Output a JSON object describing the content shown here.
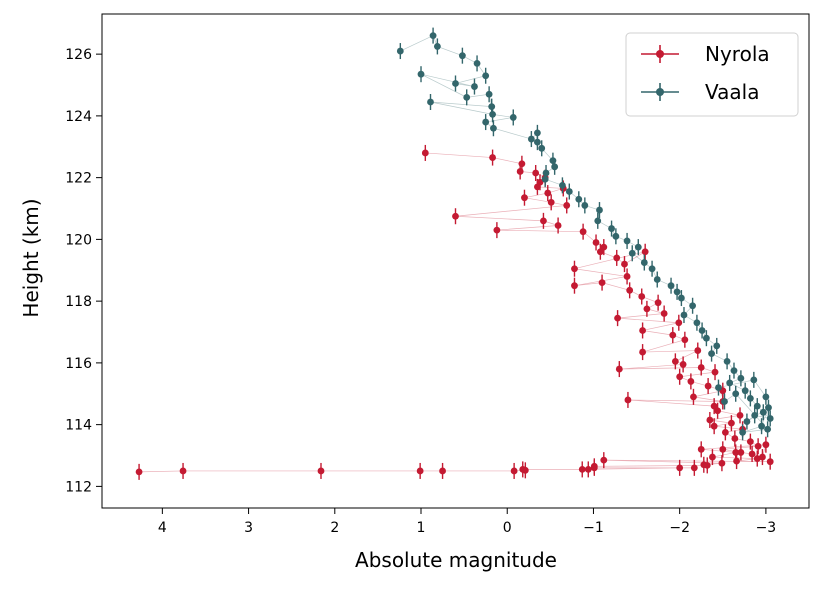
{
  "chart_data": {
    "type": "scatter",
    "title": "",
    "xlabel": "Absolute magnitude",
    "ylabel": "Height (km)",
    "xlim": [
      4.7,
      -3.5
    ],
    "ylim": [
      111.3,
      127.3
    ],
    "x_inverted": true,
    "xticks": [
      4,
      3,
      2,
      1,
      0,
      -1,
      -2,
      -3
    ],
    "xtick_labels": [
      "4",
      "3",
      "2",
      "1",
      "0",
      "−1",
      "−2",
      "−3"
    ],
    "yticks": [
      112,
      114,
      116,
      118,
      120,
      122,
      124,
      126
    ],
    "ytick_labels": [
      "112",
      "114",
      "116",
      "118",
      "120",
      "122",
      "124",
      "126"
    ],
    "grid": false,
    "legend_position": "top-right",
    "error_bars": "vertical",
    "series": [
      {
        "name": "Nyrola",
        "color": "#c41a32",
        "points": [
          [
            0.95,
            122.8
          ],
          [
            0.17,
            122.65
          ],
          [
            -0.17,
            122.45
          ],
          [
            -0.15,
            122.2
          ],
          [
            -0.33,
            122.15
          ],
          [
            -0.44,
            122.0
          ],
          [
            -0.38,
            121.85
          ],
          [
            -0.35,
            121.7
          ],
          [
            -0.65,
            121.65
          ],
          [
            -0.47,
            121.5
          ],
          [
            -0.2,
            121.35
          ],
          [
            -0.51,
            121.2
          ],
          [
            -0.69,
            121.1
          ],
          [
            0.6,
            120.75
          ],
          [
            -0.42,
            120.6
          ],
          [
            -0.59,
            120.45
          ],
          [
            0.12,
            120.3
          ],
          [
            -0.88,
            120.25
          ],
          [
            -1.03,
            119.9
          ],
          [
            -1.12,
            119.75
          ],
          [
            -1.08,
            119.6
          ],
          [
            -1.27,
            119.4
          ],
          [
            -1.36,
            119.2
          ],
          [
            -1.6,
            119.6
          ],
          [
            -0.78,
            119.05
          ],
          [
            -1.39,
            118.8
          ],
          [
            -0.78,
            118.5
          ],
          [
            -1.1,
            118.6
          ],
          [
            -1.42,
            118.35
          ],
          [
            -1.56,
            118.15
          ],
          [
            -1.75,
            117.95
          ],
          [
            -1.62,
            117.75
          ],
          [
            -1.82,
            117.6
          ],
          [
            -1.28,
            117.45
          ],
          [
            -1.99,
            117.3
          ],
          [
            -1.57,
            117.05
          ],
          [
            -1.92,
            116.9
          ],
          [
            -2.06,
            116.75
          ],
          [
            -1.57,
            116.35
          ],
          [
            -2.21,
            116.4
          ],
          [
            -1.95,
            116.05
          ],
          [
            -2.04,
            115.95
          ],
          [
            -1.3,
            115.8
          ],
          [
            -2.25,
            115.85
          ],
          [
            -2.41,
            115.7
          ],
          [
            -2.0,
            115.55
          ],
          [
            -2.13,
            115.4
          ],
          [
            -2.33,
            115.25
          ],
          [
            -2.5,
            115.1
          ],
          [
            -2.16,
            114.9
          ],
          [
            -2.5,
            114.75
          ],
          [
            -1.4,
            114.8
          ],
          [
            -2.4,
            114.6
          ],
          [
            -2.44,
            114.45
          ],
          [
            -2.7,
            114.3
          ],
          [
            -2.35,
            114.15
          ],
          [
            -2.6,
            114.05
          ],
          [
            -2.4,
            113.95
          ],
          [
            -2.73,
            113.85
          ],
          [
            -2.53,
            113.75
          ],
          [
            -2.64,
            113.55
          ],
          [
            -2.82,
            113.45
          ],
          [
            -2.91,
            113.3
          ],
          [
            -2.5,
            113.2
          ],
          [
            -2.71,
            113.1
          ],
          [
            -2.84,
            113.05
          ],
          [
            -2.96,
            112.95
          ],
          [
            -3.0,
            113.35
          ],
          [
            -2.25,
            113.2
          ],
          [
            -2.65,
            113.1
          ],
          [
            -2.38,
            112.95
          ],
          [
            -2.9,
            112.9
          ],
          [
            -2.66,
            112.82
          ],
          [
            -3.05,
            112.8
          ],
          [
            -1.12,
            112.85
          ],
          [
            -2.49,
            112.75
          ],
          [
            -2.28,
            112.7
          ],
          [
            -2.32,
            112.68
          ],
          [
            -1.01,
            112.65
          ],
          [
            -1.01,
            112.6
          ],
          [
            -2.17,
            112.6
          ],
          [
            -2.0,
            112.6
          ],
          [
            -0.87,
            112.55
          ],
          [
            -0.94,
            112.55
          ],
          [
            -0.18,
            112.55
          ],
          [
            -0.21,
            112.52
          ],
          [
            -0.08,
            112.5
          ],
          [
            0.75,
            112.5
          ],
          [
            1.01,
            112.5
          ],
          [
            2.16,
            112.5
          ],
          [
            3.76,
            112.5
          ],
          [
            4.27,
            112.47
          ]
        ]
      },
      {
        "name": "Vaala",
        "color": "#33666b",
        "points": [
          [
            1.24,
            126.1
          ],
          [
            0.86,
            126.6
          ],
          [
            0.81,
            126.25
          ],
          [
            0.52,
            125.95
          ],
          [
            0.35,
            125.7
          ],
          [
            0.25,
            125.3
          ],
          [
            0.6,
            125.05
          ],
          [
            0.38,
            124.95
          ],
          [
            1.0,
            125.35
          ],
          [
            0.47,
            124.6
          ],
          [
            0.21,
            124.7
          ],
          [
            0.18,
            124.3
          ],
          [
            0.89,
            124.45
          ],
          [
            0.17,
            124.05
          ],
          [
            -0.07,
            123.95
          ],
          [
            0.25,
            123.8
          ],
          [
            0.16,
            123.6
          ],
          [
            -0.28,
            123.25
          ],
          [
            -0.35,
            123.45
          ],
          [
            -0.35,
            123.15
          ],
          [
            -0.4,
            122.95
          ],
          [
            -0.53,
            122.55
          ],
          [
            -0.55,
            122.35
          ],
          [
            -0.45,
            122.15
          ],
          [
            -0.44,
            121.95
          ],
          [
            -0.64,
            121.75
          ],
          [
            -0.72,
            121.55
          ],
          [
            -0.83,
            121.3
          ],
          [
            -0.9,
            121.1
          ],
          [
            -1.07,
            120.95
          ],
          [
            -1.05,
            120.6
          ],
          [
            -1.21,
            120.35
          ],
          [
            -1.26,
            120.1
          ],
          [
            -1.39,
            119.95
          ],
          [
            -1.52,
            119.75
          ],
          [
            -1.45,
            119.55
          ],
          [
            -1.59,
            119.25
          ],
          [
            -1.68,
            119.05
          ],
          [
            -1.74,
            118.7
          ],
          [
            -1.9,
            118.5
          ],
          [
            -1.97,
            118.3
          ],
          [
            -2.02,
            118.1
          ],
          [
            -2.15,
            117.85
          ],
          [
            -2.05,
            117.55
          ],
          [
            -2.2,
            117.3
          ],
          [
            -2.26,
            117.05
          ],
          [
            -2.31,
            116.8
          ],
          [
            -2.43,
            116.55
          ],
          [
            -2.37,
            116.3
          ],
          [
            -2.55,
            116.05
          ],
          [
            -2.63,
            115.75
          ],
          [
            -2.71,
            115.5
          ],
          [
            -2.58,
            115.35
          ],
          [
            -2.76,
            115.1
          ],
          [
            -2.82,
            114.85
          ],
          [
            -2.9,
            114.6
          ],
          [
            -2.97,
            114.4
          ],
          [
            -3.05,
            114.2
          ],
          [
            -2.87,
            114.3
          ],
          [
            -2.78,
            114.1
          ],
          [
            -3.03,
            114.55
          ],
          [
            -2.95,
            113.95
          ],
          [
            -2.73,
            113.75
          ],
          [
            -3.02,
            113.85
          ],
          [
            -2.65,
            115.0
          ],
          [
            -2.52,
            114.75
          ],
          [
            -2.45,
            115.2
          ],
          [
            -2.86,
            115.45
          ],
          [
            -3.0,
            114.9
          ]
        ]
      }
    ]
  }
}
